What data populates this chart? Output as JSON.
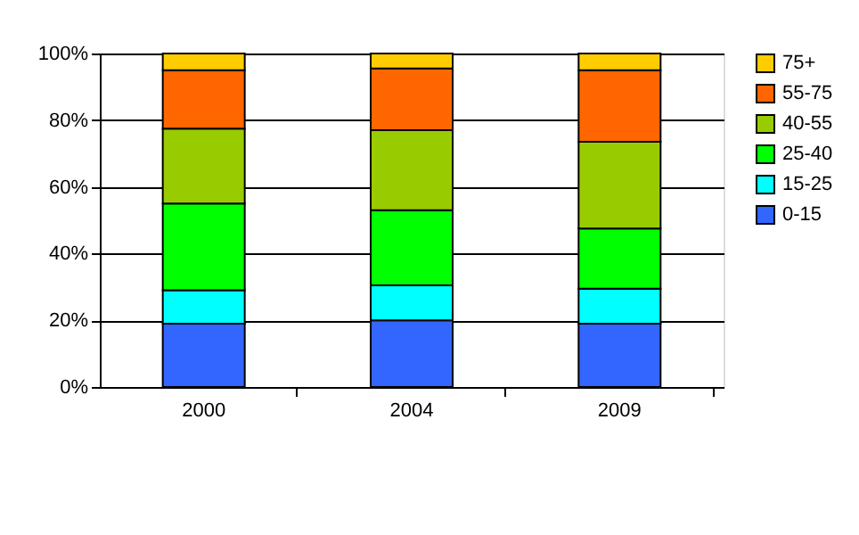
{
  "chart_data": {
    "type": "bar",
    "stacked": true,
    "categories": [
      "2000",
      "2004",
      "2009"
    ],
    "series": [
      {
        "name": "0-15",
        "color": "#3366ff",
        "values": [
          19,
          20,
          19
        ]
      },
      {
        "name": "15-25",
        "color": "#00ffff",
        "values": [
          10,
          10.5,
          10.5
        ]
      },
      {
        "name": "25-40",
        "color": "#00ff00",
        "values": [
          26,
          22.5,
          18
        ]
      },
      {
        "name": "40-55",
        "color": "#99cc00",
        "values": [
          22.5,
          24,
          26
        ]
      },
      {
        "name": "55-75",
        "color": "#ff6600",
        "values": [
          17.5,
          18.5,
          21.5
        ]
      },
      {
        "name": "75+",
        "color": "#ffcc00",
        "values": [
          5,
          4.5,
          5
        ]
      }
    ],
    "ylim": [
      0,
      100
    ],
    "yticks": [
      {
        "value": 0,
        "label": "0%"
      },
      {
        "value": 20,
        "label": "20%"
      },
      {
        "value": 40,
        "label": "40%"
      },
      {
        "value": 60,
        "label": "60%"
      },
      {
        "value": 80,
        "label": "80%"
      },
      {
        "value": 100,
        "label": "100%"
      }
    ],
    "grid": "y",
    "legend": "right"
  }
}
